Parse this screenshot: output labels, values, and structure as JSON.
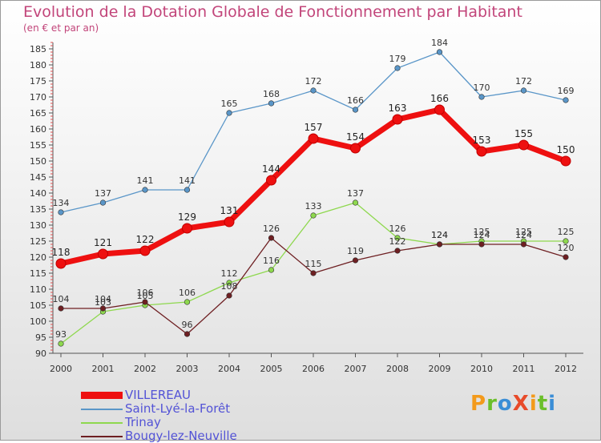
{
  "header": {
    "title": "Evolution de la Dotation Globale de Fonctionnement par Habitant",
    "subtitle": "(en € et par an)"
  },
  "logo": {
    "text": "ProXiti",
    "colors": [
      "#f39a1b",
      "#6bbf2a",
      "#3b8ed6",
      "#e84b2a",
      "#f39a1b",
      "#6bbf2a",
      "#3b8ed6"
    ]
  },
  "chart_data": {
    "type": "line",
    "title": "Evolution de la Dotation Globale de Fonctionnement par Habitant",
    "subtitle": "(en € et par an)",
    "xlabel": "",
    "ylabel": "",
    "ylim": [
      90,
      187
    ],
    "yticks": [
      90,
      95,
      100,
      105,
      110,
      115,
      120,
      125,
      130,
      135,
      140,
      145,
      150,
      155,
      160,
      165,
      170,
      175,
      180,
      185
    ],
    "grid": false,
    "legend": "bottom-left",
    "x": [
      "2000",
      "2001",
      "2002",
      "2003",
      "2004",
      "2005",
      "2006",
      "2007",
      "2008",
      "2009",
      "2010",
      "2011",
      "2012"
    ],
    "series": [
      {
        "name": "Saint-Lyé-la-Forêt",
        "color": "#5a96c8",
        "values": [
          134,
          137,
          141,
          141,
          165,
          168,
          172,
          166,
          179,
          184,
          170,
          172,
          169
        ]
      },
      {
        "name": "Trinay",
        "color": "#8ed84e",
        "values": [
          93,
          103,
          105,
          106,
          112,
          116,
          133,
          137,
          126,
          124,
          125,
          125,
          125
        ]
      },
      {
        "name": "Bougy-lez-Neuville",
        "color": "#6e1f22",
        "values": [
          104,
          104,
          106,
          96,
          108,
          126,
          115,
          119,
          122,
          124,
          124,
          124,
          120
        ]
      },
      {
        "name": "VILLEREAU",
        "color": "#ee1010",
        "values": [
          118,
          121,
          122,
          129,
          131,
          144,
          157,
          154,
          163,
          166,
          153,
          155,
          150
        ]
      }
    ],
    "legend_order": [
      "VILLEREAU",
      "Saint-Lyé-la-Forêt",
      "Trinay",
      "Bougy-lez-Neuville"
    ]
  }
}
